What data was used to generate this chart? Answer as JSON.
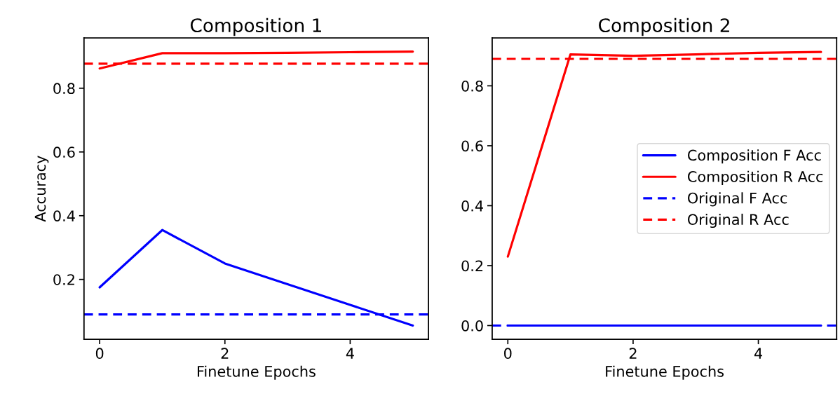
{
  "chart_data": [
    {
      "type": "line",
      "title": "Composition 1",
      "xlabel": "Finetune Epochs",
      "ylabel": "Accuracy",
      "x": [
        0,
        1,
        2,
        3,
        4,
        5
      ],
      "series": [
        {
          "color": "#0000ff",
          "values": [
            0.175,
            0.355,
            0.25,
            0.185,
            0.12,
            0.055
          ]
        },
        {
          "color": "#ff0000",
          "values": [
            0.862,
            0.91,
            0.91,
            0.911,
            0.913,
            0.915
          ]
        }
      ],
      "ref_lines": [
        {
          "axis": "y",
          "value": 0.09,
          "color": "#0000ff",
          "line_style": "dashed"
        },
        {
          "axis": "y",
          "value": 0.877,
          "color": "#ff0000",
          "line_style": "dashed"
        }
      ],
      "xlim": [
        -0.25,
        5.25
      ],
      "xticks": [
        0,
        2,
        4
      ],
      "ylim": [
        0.012,
        0.958
      ],
      "yticks": [
        0.2,
        0.4,
        0.6,
        0.8
      ],
      "line_style": "solid",
      "marker": "none",
      "grid": false,
      "legend": false
    },
    {
      "type": "line",
      "title": "Composition 2",
      "xlabel": "Finetune Epochs",
      "x": [
        0,
        1,
        2,
        3,
        4,
        5
      ],
      "series": [
        {
          "name": "Composition F Acc",
          "color": "#0000ff",
          "values": [
            0.0,
            0.0,
            0.0,
            0.0,
            0.0,
            0.0
          ]
        },
        {
          "name": "Composition R Acc",
          "color": "#ff0000",
          "values": [
            0.23,
            0.905,
            0.9,
            0.905,
            0.91,
            0.913
          ]
        }
      ],
      "ref_lines": [
        {
          "axis": "y",
          "value": 0.0,
          "label": "Original F Acc",
          "color": "#0000ff",
          "line_style": "dashed"
        },
        {
          "axis": "y",
          "value": 0.89,
          "label": "Original R Acc",
          "color": "#ff0000",
          "line_style": "dashed"
        }
      ],
      "xlim": [
        -0.25,
        5.25
      ],
      "xticks": [
        0,
        2,
        4
      ],
      "ylim": [
        -0.046,
        0.96
      ],
      "yticks": [
        {
          "value": 0,
          "label": "0.0"
        },
        0.2,
        0.4,
        0.6,
        0.8
      ],
      "line_style": "solid",
      "marker": "none",
      "grid": false,
      "legend": "right"
    }
  ]
}
